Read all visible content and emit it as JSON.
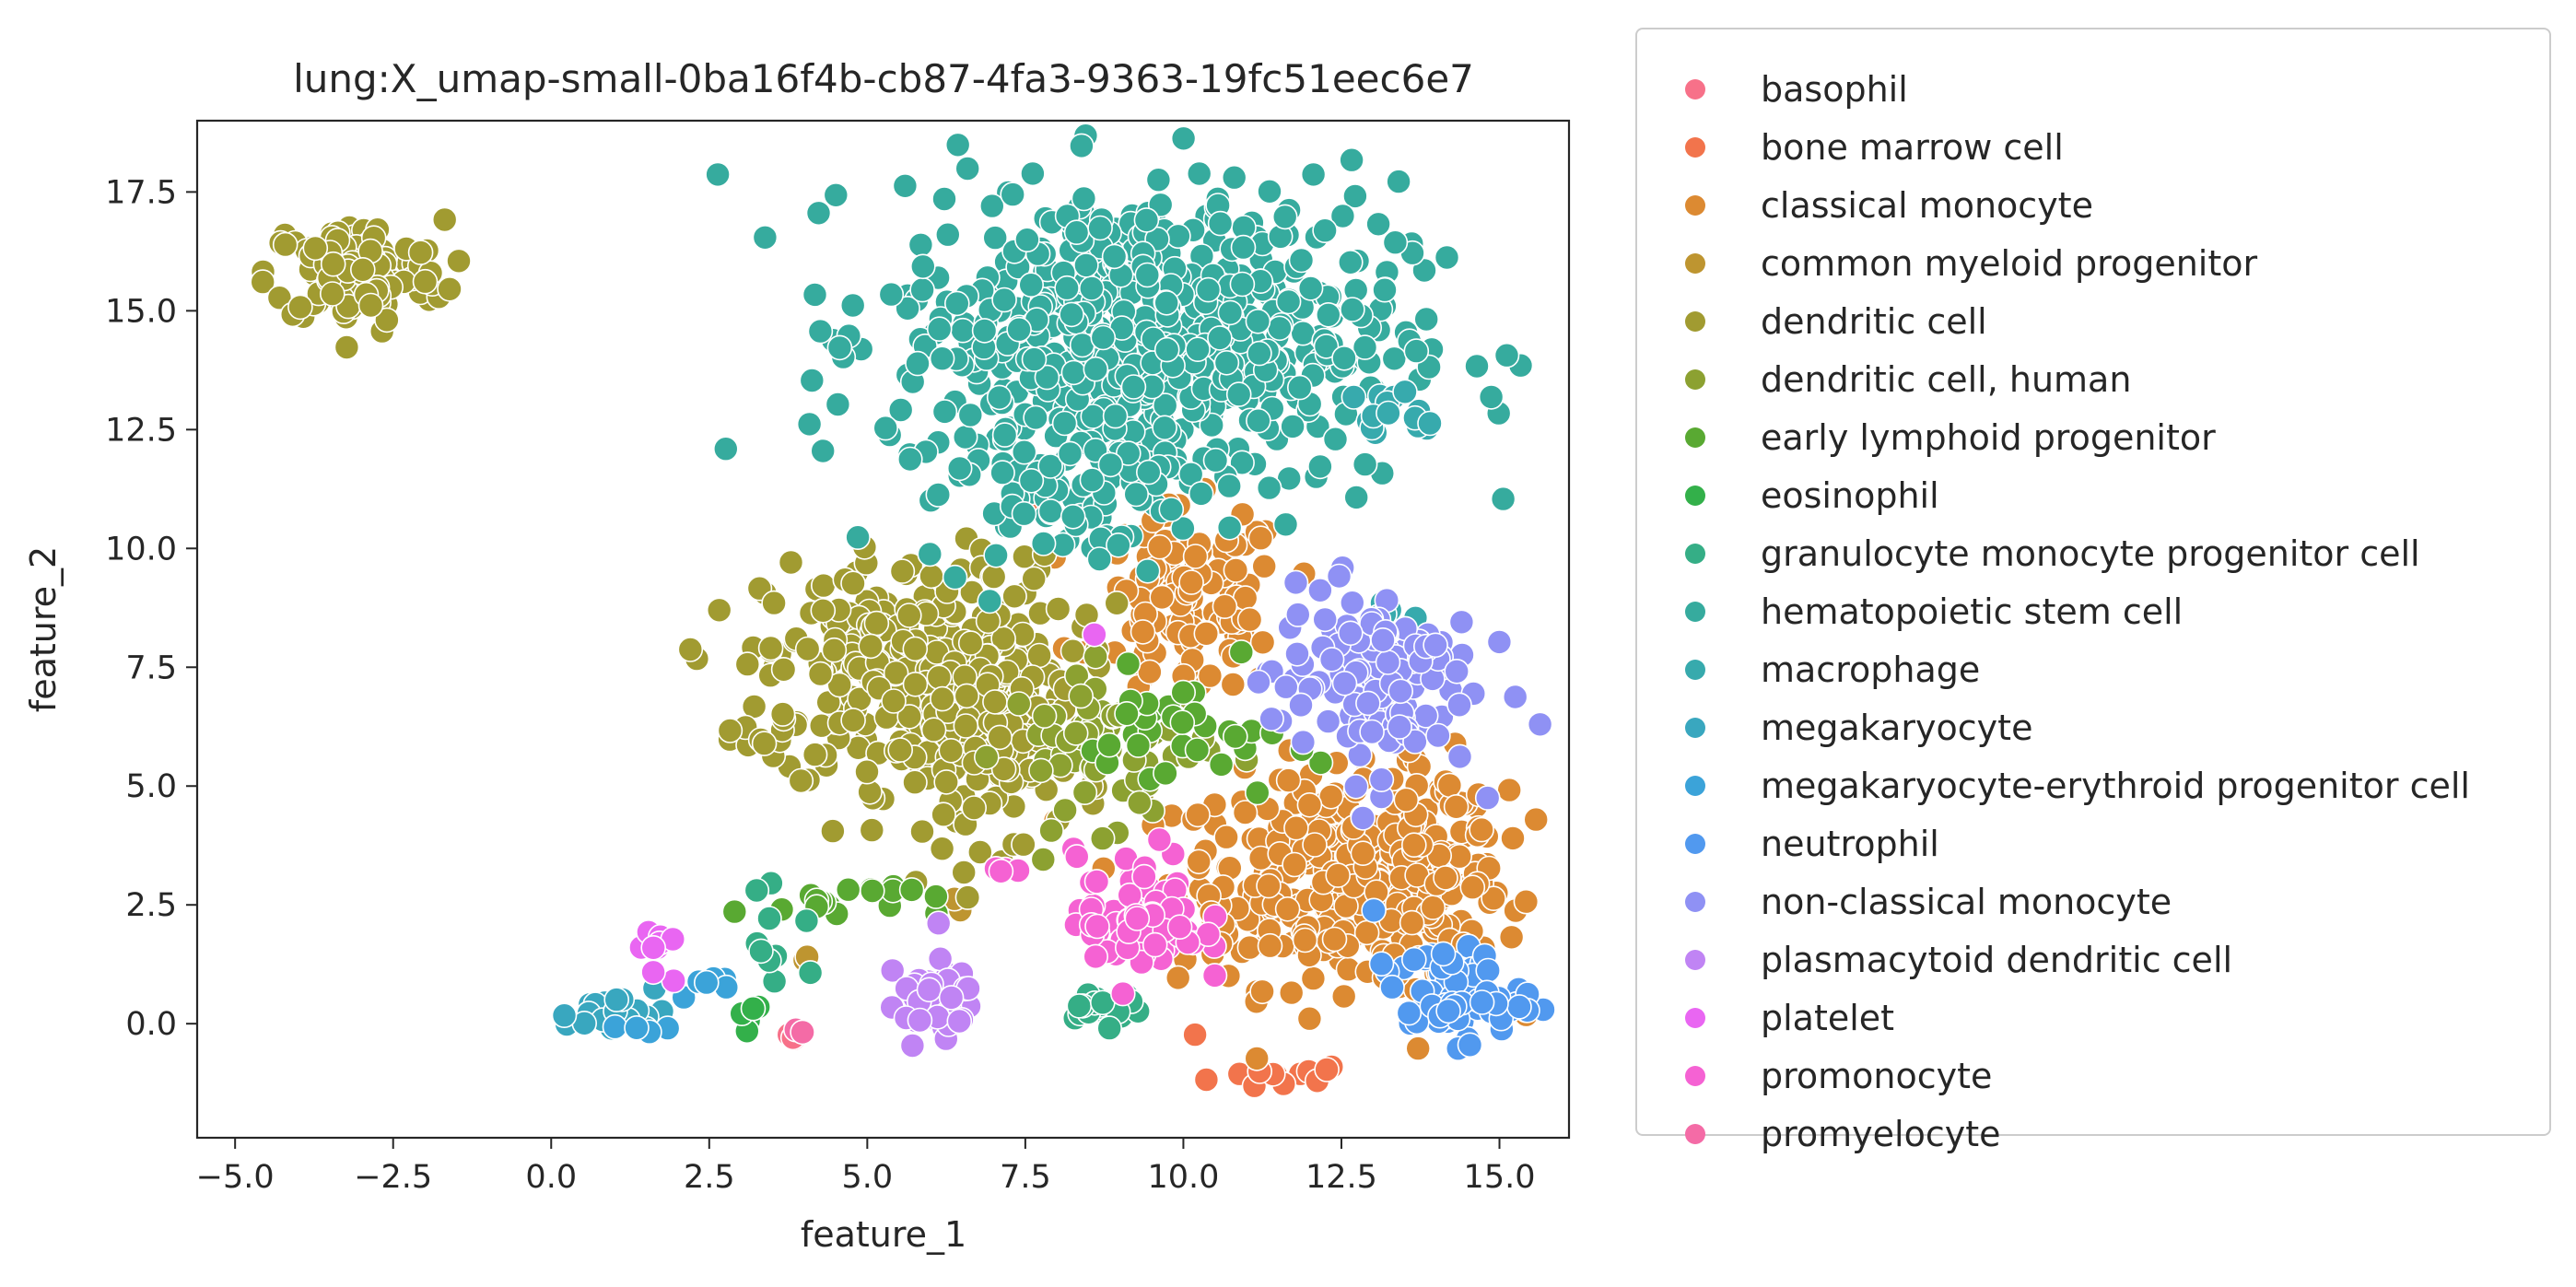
{
  "chart_data": {
    "type": "scatter",
    "title": "lung:X_umap-small-0ba16f4b-cb87-4fa3-9363-19fc51eec6e7",
    "xlabel": "feature_1",
    "ylabel": "feature_2",
    "xlim": [
      -5.6,
      16.1
    ],
    "ylim": [
      -2.4,
      19.0
    ],
    "xticks": [
      -5.0,
      -2.5,
      0.0,
      2.5,
      5.0,
      7.5,
      10.0,
      12.5,
      15.0
    ],
    "yticks": [
      0.0,
      2.5,
      5.0,
      7.5,
      10.0,
      12.5,
      15.0,
      17.5
    ],
    "xtick_labels": [
      "−5.0",
      "−2.5",
      "0.0",
      "2.5",
      "5.0",
      "7.5",
      "10.0",
      "12.5",
      "15.0"
    ],
    "ytick_labels": [
      "0.0",
      "2.5",
      "5.0",
      "7.5",
      "10.0",
      "12.5",
      "15.0",
      "17.5"
    ],
    "legend_position": "outside-right",
    "series": [
      {
        "name": "basophil",
        "color": "#f77189",
        "clusters": [
          {
            "cx": 3.8,
            "cy": -0.3,
            "sx": 0.1,
            "sy": 0.05,
            "n": 4
          }
        ]
      },
      {
        "name": "bone marrow cell",
        "color": "#f2744c",
        "clusters": [
          {
            "cx": 11.6,
            "cy": -1.1,
            "sx": 0.6,
            "sy": 0.15,
            "n": 14
          },
          {
            "cx": 10.2,
            "cy": -0.1,
            "sx": 0.05,
            "sy": 0.05,
            "n": 1
          },
          {
            "cx": 7.6,
            "cy": 11.0,
            "sx": 0.05,
            "sy": 0.05,
            "n": 1
          }
        ]
      },
      {
        "name": "classical monocyte",
        "color": "#dc8a32",
        "clusters": [
          {
            "cx": 12.5,
            "cy": 3.0,
            "sx": 1.3,
            "sy": 1.1,
            "n": 340
          },
          {
            "cx": 10.1,
            "cy": 8.8,
            "sx": 0.75,
            "sy": 1.0,
            "n": 120
          },
          {
            "cx": 14.0,
            "cy": 3.5,
            "sx": 0.5,
            "sy": 1.0,
            "n": 60
          }
        ]
      },
      {
        "name": "common myeloid progenitor",
        "color": "#be9530",
        "clusters": [
          {
            "cx": 4.0,
            "cy": 1.3,
            "sx": 0.1,
            "sy": 0.1,
            "n": 2
          },
          {
            "cx": 6.2,
            "cy": 2.5,
            "sx": 0.2,
            "sy": 0.2,
            "n": 3
          }
        ]
      },
      {
        "name": "dendritic cell",
        "color": "#a19b31",
        "clusters": [
          {
            "cx": -3.1,
            "cy": 15.8,
            "sx": 0.7,
            "sy": 0.55,
            "n": 120
          },
          {
            "cx": 5.8,
            "cy": 7.4,
            "sx": 1.2,
            "sy": 1.2,
            "n": 320
          },
          {
            "cx": 7.0,
            "cy": 5.8,
            "sx": 0.9,
            "sy": 1.0,
            "n": 120
          },
          {
            "cx": 3.2,
            "cy": 6.2,
            "sx": 0.4,
            "sy": 0.2,
            "n": 8
          }
        ]
      },
      {
        "name": "dendritic cell, human",
        "color": "#8ca131",
        "clusters": [
          {
            "cx": 8.8,
            "cy": 5.8,
            "sx": 0.8,
            "sy": 0.8,
            "n": 60
          }
        ]
      },
      {
        "name": "early lymphoid progenitor",
        "color": "#59a932",
        "clusters": [
          {
            "cx": 4.5,
            "cy": 2.6,
            "sx": 0.8,
            "sy": 0.2,
            "n": 18
          },
          {
            "cx": 10.0,
            "cy": 6.0,
            "sx": 0.8,
            "sy": 0.7,
            "n": 35
          }
        ]
      },
      {
        "name": "eosinophil",
        "color": "#33b04a",
        "clusters": [
          {
            "cx": 3.1,
            "cy": 0.2,
            "sx": 0.2,
            "sy": 0.15,
            "n": 5
          }
        ]
      },
      {
        "name": "granulocyte monocyte progenitor cell",
        "color": "#35ae86",
        "clusters": [
          {
            "cx": 8.7,
            "cy": 0.4,
            "sx": 0.35,
            "sy": 0.2,
            "n": 20
          },
          {
            "cx": 3.6,
            "cy": 1.6,
            "sx": 0.3,
            "sy": 0.5,
            "n": 10
          }
        ]
      },
      {
        "name": "hematopoietic stem cell",
        "color": "#36ab9e",
        "clusters": [
          {
            "cx": 9.4,
            "cy": 14.5,
            "sx": 2.0,
            "sy": 1.6,
            "n": 650
          },
          {
            "cx": 8.2,
            "cy": 11.3,
            "sx": 1.2,
            "sy": 0.8,
            "n": 80
          }
        ]
      },
      {
        "name": "macrophage",
        "color": "#37aaad",
        "clusters": [
          {
            "cx": 13.4,
            "cy": 12.8,
            "sx": 0.4,
            "sy": 0.3,
            "n": 15
          },
          {
            "cx": 13.4,
            "cy": 8.6,
            "sx": 0.2,
            "sy": 0.2,
            "n": 6
          }
        ]
      },
      {
        "name": "megakaryocyte",
        "color": "#39a7bf",
        "clusters": [
          {
            "cx": 1.0,
            "cy": 0.2,
            "sx": 0.4,
            "sy": 0.2,
            "n": 30
          }
        ]
      },
      {
        "name": "megakaryocyte-erythroid progenitor cell",
        "color": "#3ba3d9",
        "clusters": [
          {
            "cx": 2.6,
            "cy": 0.8,
            "sx": 0.25,
            "sy": 0.15,
            "n": 6
          },
          {
            "cx": 1.5,
            "cy": -0.1,
            "sx": 0.2,
            "sy": 0.1,
            "n": 4
          }
        ]
      },
      {
        "name": "neutrophil",
        "color": "#5199ef",
        "clusters": [
          {
            "cx": 14.2,
            "cy": 0.6,
            "sx": 0.6,
            "sy": 0.5,
            "n": 70
          }
        ]
      },
      {
        "name": "non-classical monocyte",
        "color": "#8f91f4",
        "clusters": [
          {
            "cx": 13.0,
            "cy": 7.3,
            "sx": 0.8,
            "sy": 1.0,
            "n": 130
          }
        ]
      },
      {
        "name": "plasmacytoid dendritic cell",
        "color": "#c084f4",
        "clusters": [
          {
            "cx": 6.0,
            "cy": 0.5,
            "sx": 0.35,
            "sy": 0.45,
            "n": 45
          }
        ]
      },
      {
        "name": "platelet",
        "color": "#e966f2",
        "clusters": [
          {
            "cx": 1.7,
            "cy": 1.4,
            "sx": 0.15,
            "sy": 0.3,
            "n": 10
          },
          {
            "cx": 8.6,
            "cy": 8.2,
            "sx": 0.05,
            "sy": 0.05,
            "n": 1
          }
        ]
      },
      {
        "name": "promonocyte",
        "color": "#f562d3",
        "clusters": [
          {
            "cx": 9.3,
            "cy": 2.2,
            "sx": 0.5,
            "sy": 0.7,
            "n": 80
          },
          {
            "cx": 7.1,
            "cy": 3.3,
            "sx": 0.2,
            "sy": 0.1,
            "n": 4
          }
        ]
      },
      {
        "name": "promyelocyte",
        "color": "#f46ba6",
        "clusters": [
          {
            "cx": 3.9,
            "cy": -0.2,
            "sx": 0.05,
            "sy": 0.05,
            "n": 2
          }
        ]
      }
    ]
  }
}
